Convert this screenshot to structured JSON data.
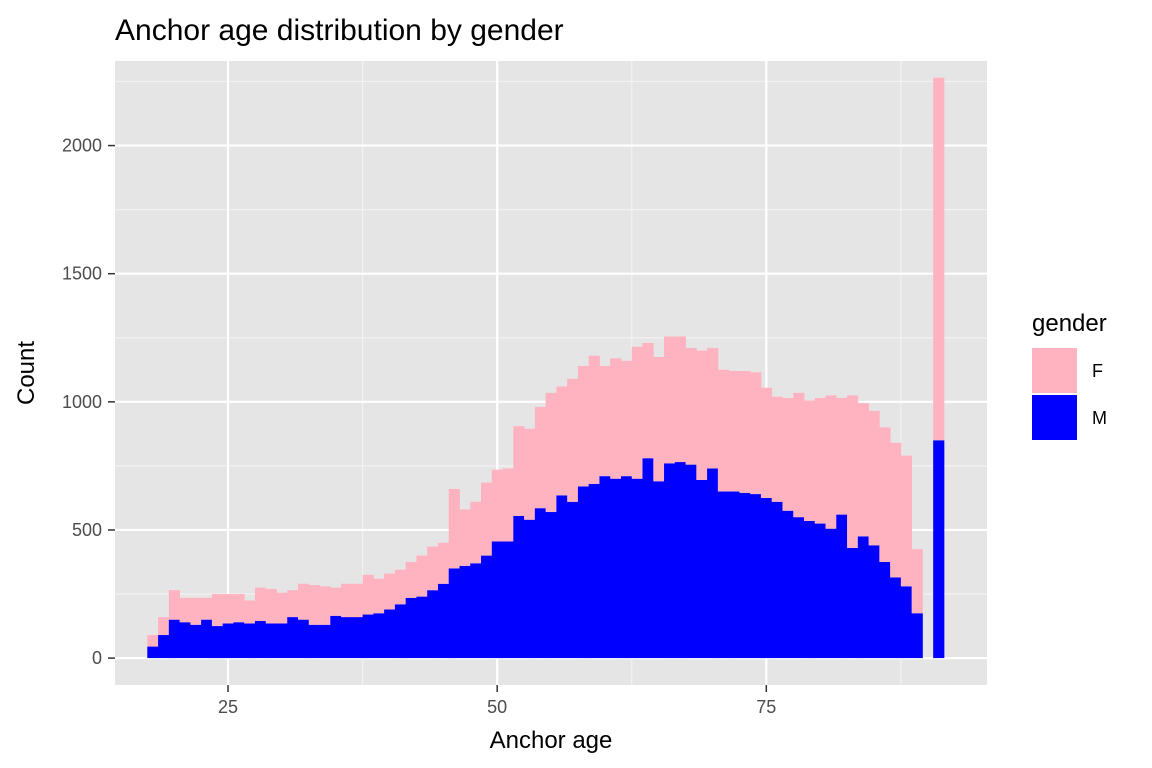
{
  "chart_data": {
    "type": "bar",
    "stacked": true,
    "title": "Anchor age distribution by gender",
    "xlabel": "Anchor age",
    "ylabel": "Count",
    "xlim": [
      14.5,
      95.5
    ],
    "ylim": [
      -105,
      2330
    ],
    "x_ticks": [
      25,
      50,
      75
    ],
    "y_ticks": [
      0,
      500,
      1000,
      1500,
      2000
    ],
    "grid": true,
    "legend_title": "gender",
    "legend_position": "right",
    "x": [
      18,
      19,
      20,
      21,
      22,
      23,
      24,
      25,
      26,
      27,
      28,
      29,
      30,
      31,
      32,
      33,
      34,
      35,
      36,
      37,
      38,
      39,
      40,
      41,
      42,
      43,
      44,
      45,
      46,
      47,
      48,
      49,
      50,
      51,
      52,
      53,
      54,
      55,
      56,
      57,
      58,
      59,
      60,
      61,
      62,
      63,
      64,
      65,
      66,
      67,
      68,
      69,
      70,
      71,
      72,
      73,
      74,
      75,
      76,
      77,
      78,
      79,
      80,
      81,
      82,
      83,
      84,
      85,
      86,
      87,
      88,
      89,
      90,
      91
    ],
    "series": [
      {
        "name": "M",
        "color": "#0000ff",
        "values": [
          45,
          90,
          150,
          140,
          130,
          150,
          125,
          135,
          140,
          135,
          145,
          135,
          135,
          160,
          150,
          130,
          130,
          165,
          160,
          160,
          170,
          175,
          190,
          210,
          235,
          240,
          265,
          290,
          350,
          360,
          370,
          400,
          455,
          455,
          555,
          540,
          585,
          570,
          635,
          610,
          670,
          680,
          710,
          700,
          710,
          700,
          780,
          690,
          760,
          765,
          755,
          695,
          740,
          650,
          650,
          645,
          640,
          625,
          610,
          575,
          550,
          535,
          525,
          505,
          560,
          430,
          475,
          440,
          375,
          315,
          280,
          175,
          0,
          850
        ]
      },
      {
        "name": "F",
        "color": "#ffb3c1",
        "values": [
          45,
          70,
          115,
          95,
          105,
          85,
          125,
          115,
          110,
          90,
          130,
          135,
          120,
          105,
          140,
          155,
          150,
          110,
          130,
          130,
          155,
          135,
          140,
          135,
          140,
          160,
          170,
          160,
          310,
          220,
          240,
          285,
          280,
          285,
          350,
          355,
          395,
          465,
          425,
          480,
          470,
          500,
          430,
          470,
          450,
          515,
          450,
          485,
          495,
          490,
          455,
          505,
          470,
          475,
          470,
          475,
          475,
          430,
          410,
          440,
          485,
          470,
          490,
          520,
          455,
          595,
          520,
          525,
          525,
          525,
          510,
          250,
          0,
          1415
        ]
      }
    ]
  }
}
